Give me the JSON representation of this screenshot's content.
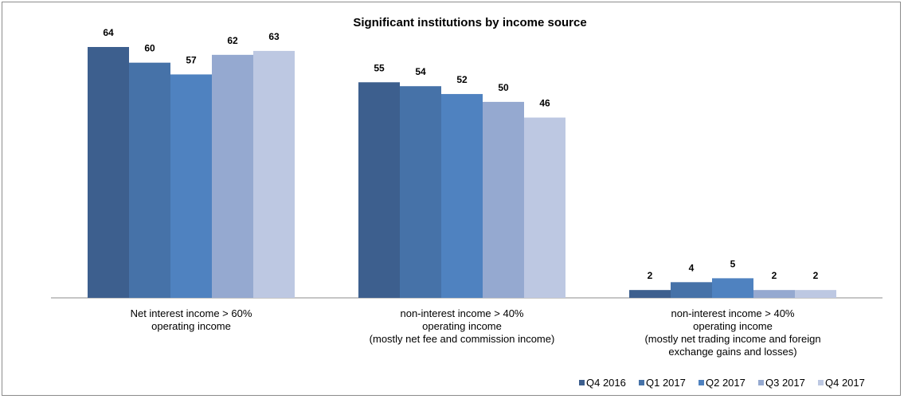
{
  "chart_data": {
    "type": "bar",
    "title": "Significant institutions by income source",
    "xlabel": "",
    "ylabel": "",
    "ylim": [
      0,
      64
    ],
    "grid": false,
    "legend_position": "bottom-right",
    "categories": [
      [
        "Net interest income > 60%",
        "operating income"
      ],
      [
        "non-interest income > 40%",
        "operating income",
        "(mostly net fee and commission income)"
      ],
      [
        "non-interest income > 40%",
        "operating income",
        "(mostly net trading income and foreign",
        "exchange gains and losses)"
      ]
    ],
    "series": [
      {
        "name": "Q4 2016",
        "color": "#3d5f8e",
        "values": [
          64,
          55,
          2
        ]
      },
      {
        "name": "Q1 2017",
        "color": "#4672a8",
        "values": [
          60,
          54,
          4
        ]
      },
      {
        "name": "Q2 2017",
        "color": "#4f82c0",
        "values": [
          57,
          52,
          5
        ]
      },
      {
        "name": "Q3 2017",
        "color": "#95a9d0",
        "values": [
          62,
          50,
          2
        ]
      },
      {
        "name": "Q4 2017",
        "color": "#bdc8e2",
        "values": [
          63,
          46,
          2
        ]
      }
    ]
  }
}
